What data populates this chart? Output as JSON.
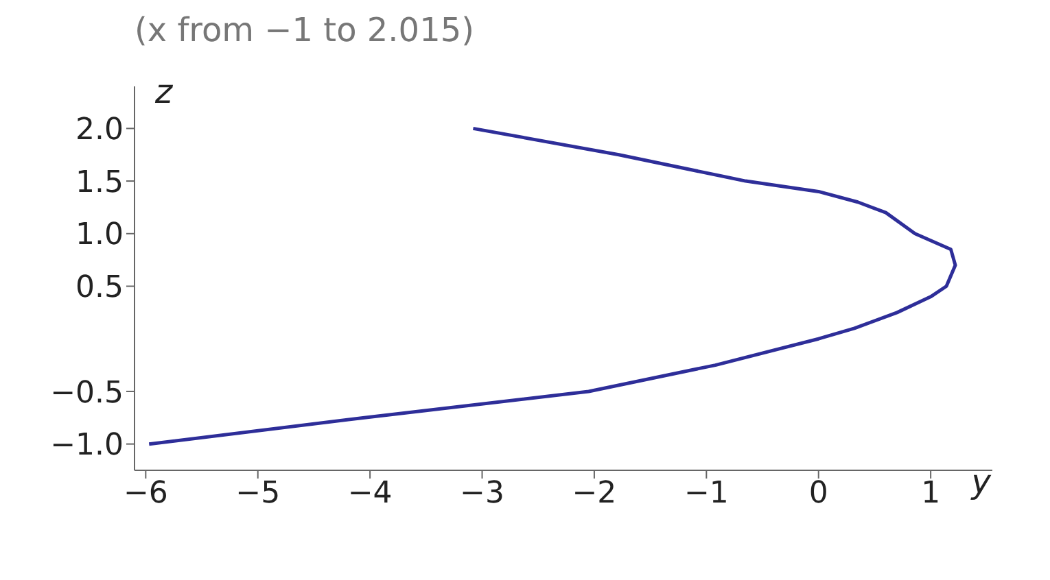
{
  "chart_data": {
    "type": "line",
    "title": "(x from −1 to 2.015)",
    "xlabel": "y",
    "ylabel": "z",
    "series": [
      {
        "color": "#2e2e99",
        "x": [
          -5.97,
          -4.05,
          -2.05,
          -0.92,
          0,
          0.32,
          0.7,
          1.0,
          1.14,
          1.22,
          1.18,
          0.86,
          0.6,
          0.35,
          0,
          -0.65,
          -1.78,
          -3.08
        ],
        "values": [
          -1,
          -0.75,
          -0.5,
          -0.25,
          0,
          0.1,
          0.25,
          0.4,
          0.5,
          0.7,
          0.85,
          1,
          1.2,
          1.3,
          1.4,
          1.5,
          1.75,
          2.0
        ]
      }
    ],
    "xlim": [
      -6.1,
      1.55
    ],
    "ylim": [
      -1.25,
      2.4
    ],
    "xticks": [
      {
        "value": -6,
        "label": "−6"
      },
      {
        "value": -5,
        "label": "−5"
      },
      {
        "value": -4,
        "label": "−4"
      },
      {
        "value": -3,
        "label": "−3"
      },
      {
        "value": -2,
        "label": "−2"
      },
      {
        "value": -1,
        "label": "−1"
      },
      0,
      1
    ],
    "yticks": [
      {
        "value": -1,
        "label": "−1.0"
      },
      {
        "value": -0.5,
        "label": "−0.5"
      },
      {
        "value": 0.5,
        "label": "0.5"
      },
      {
        "value": 1,
        "label": "1.0"
      },
      {
        "value": 1.5,
        "label": "1.5"
      },
      {
        "value": 2,
        "label": "2.0"
      }
    ],
    "grid": false,
    "legend": false,
    "marker": "none",
    "line_style": "solid"
  }
}
